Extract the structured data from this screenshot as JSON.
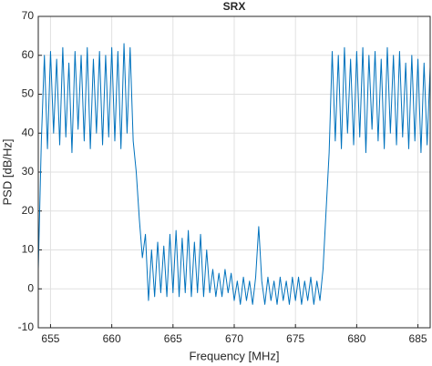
{
  "chart_data": {
    "type": "line",
    "title": "SRX",
    "x_label": "Frequency [MHz]",
    "y_label": "PSD [dB/Hz]",
    "xlim": [
      654,
      686
    ],
    "ylim": [
      -10,
      70
    ],
    "xticks": [
      655,
      660,
      665,
      670,
      675,
      680,
      685
    ],
    "yticks": [
      -10,
      0,
      10,
      20,
      30,
      40,
      50,
      60,
      70
    ],
    "grid": true,
    "x": [
      654,
      654.25,
      654.5,
      654.75,
      655,
      655.25,
      655.5,
      655.75,
      656,
      656.25,
      656.5,
      656.75,
      657,
      657.25,
      657.5,
      657.75,
      658,
      658.25,
      658.5,
      658.75,
      659,
      659.25,
      659.5,
      659.75,
      660,
      660.25,
      660.5,
      660.75,
      661,
      661.25,
      661.5,
      661.75,
      662,
      662.25,
      662.5,
      662.75,
      663,
      663.25,
      663.5,
      663.75,
      664,
      664.25,
      664.5,
      664.75,
      665,
      665.25,
      665.5,
      665.75,
      666,
      666.25,
      666.5,
      666.75,
      667,
      667.25,
      667.5,
      667.75,
      668,
      668.25,
      668.5,
      668.75,
      669,
      669.25,
      669.5,
      669.75,
      670,
      670.25,
      670.5,
      670.75,
      671,
      671.25,
      671.5,
      671.75,
      672,
      672.25,
      672.5,
      672.75,
      673,
      673.25,
      673.5,
      673.75,
      674,
      674.25,
      674.5,
      674.75,
      675,
      675.25,
      675.5,
      675.75,
      676,
      676.25,
      676.5,
      676.75,
      677,
      677.25,
      677.5,
      677.75,
      678,
      678.25,
      678.5,
      678.75,
      679,
      679.25,
      679.5,
      679.75,
      680,
      680.25,
      680.5,
      680.75,
      681,
      681.25,
      681.5,
      681.75,
      682,
      682.25,
      682.5,
      682.75,
      683,
      683.25,
      683.5,
      683.75,
      684,
      684.25,
      684.5,
      684.75,
      685,
      685.25,
      685.5,
      685.75,
      686
    ],
    "series": [
      {
        "color": "#0072bd",
        "values": [
          5,
          38,
          60,
          36,
          61,
          40,
          59,
          37,
          62,
          39,
          58,
          35,
          61,
          41,
          60,
          38,
          62,
          36,
          59,
          40,
          61,
          37,
          60,
          39,
          62,
          38,
          61,
          36,
          63,
          40,
          62,
          38,
          30,
          18,
          8,
          14,
          -3,
          10,
          -2,
          12,
          -1,
          11,
          -2,
          14,
          -1,
          15,
          -2,
          13,
          -1,
          15,
          -2,
          12,
          -1,
          14,
          -2,
          10,
          -1,
          5,
          -2,
          4,
          -2,
          5,
          -1,
          4,
          -3,
          2,
          -4,
          3,
          -3,
          2,
          -4,
          3,
          16,
          2,
          -4,
          3,
          -3,
          2,
          -4,
          3,
          -3,
          2,
          -4,
          3,
          -3,
          3,
          -4,
          2,
          -3,
          3,
          -4,
          2,
          -3,
          5,
          20,
          35,
          61,
          38,
          60,
          36,
          62,
          40,
          59,
          37,
          61,
          39,
          62,
          35,
          60,
          41,
          61,
          38,
          59,
          36,
          62,
          40,
          60,
          37,
          61,
          39,
          58,
          36,
          60,
          38,
          59,
          35,
          58,
          37,
          57
        ]
      }
    ]
  }
}
